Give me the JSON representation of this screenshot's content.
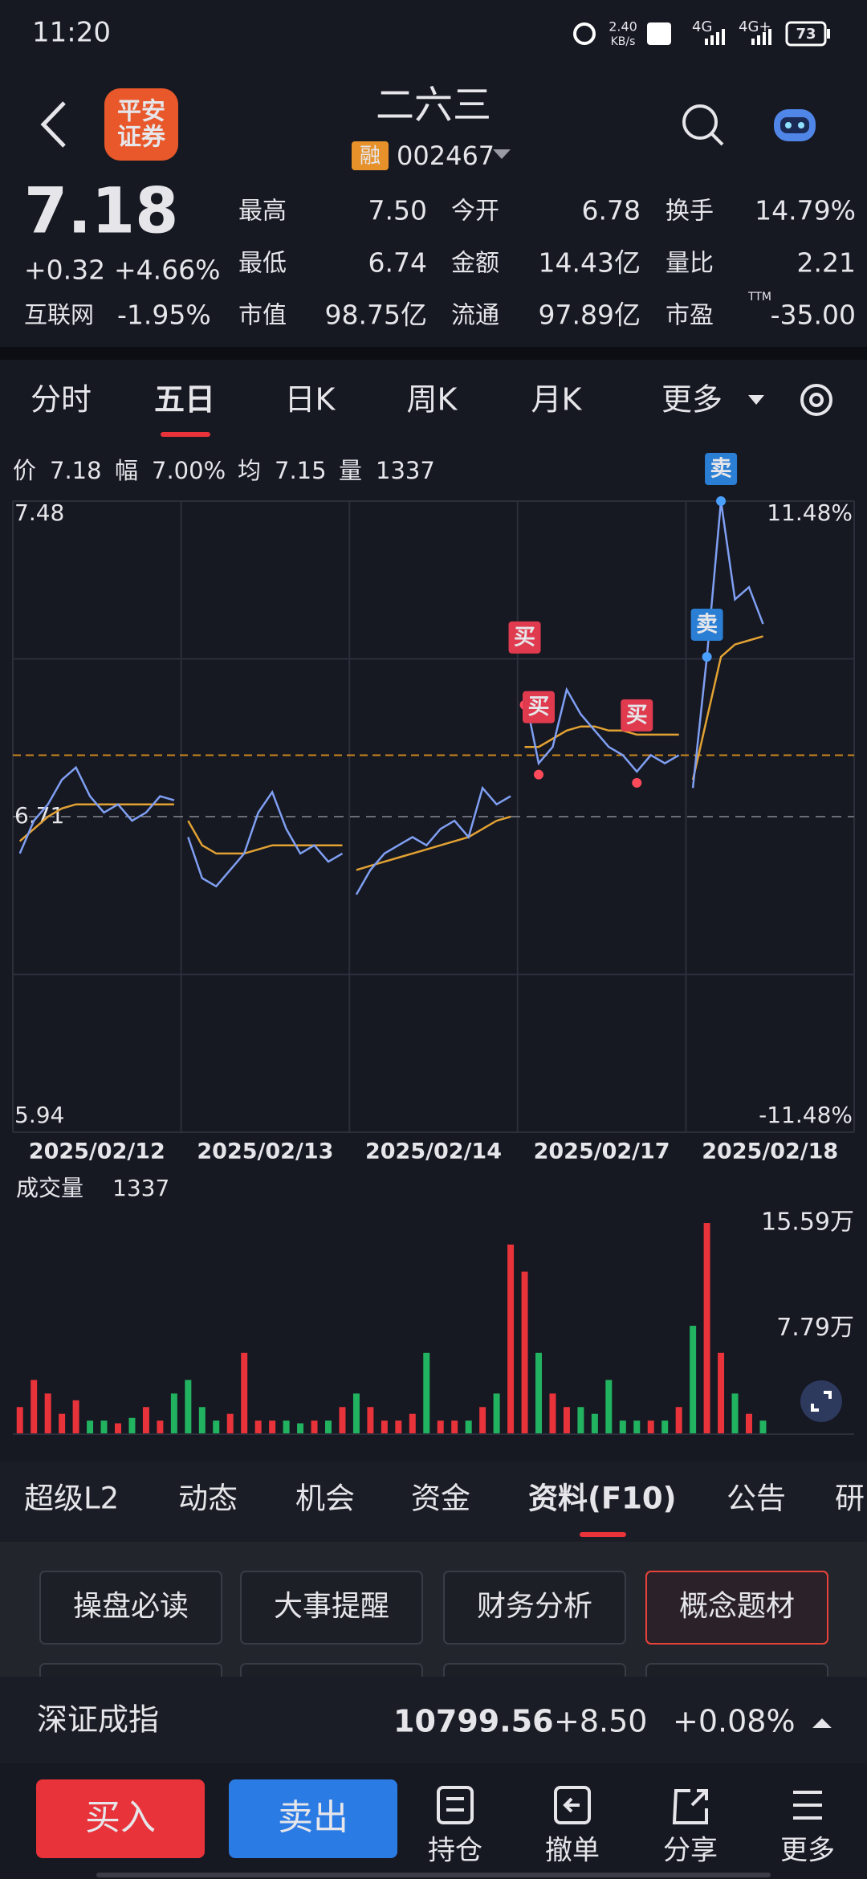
{
  "status": {
    "time": "11:20",
    "speed": "2.40",
    "speed_unit": "KB/s",
    "net1": "4G",
    "net2": "4G+",
    "battery": "73"
  },
  "header": {
    "logo_top": "平安",
    "logo_bottom": "证券",
    "title": "二六三",
    "badge": "融",
    "code": "002467"
  },
  "quote": {
    "price": "7.18",
    "change": "+0.32",
    "change_pct": "+4.66%",
    "sector": "互联网",
    "sector_pct": "-1.95%",
    "fields": [
      {
        "label": "最高",
        "value": "7.50",
        "color": "#f0393f"
      },
      {
        "label": "最低",
        "value": "6.74",
        "color": "#22b55f"
      },
      {
        "label": "市值",
        "value": "98.75亿",
        "color": "#ececf0"
      },
      {
        "label": "今开",
        "value": "6.78",
        "color": "#22b55f"
      },
      {
        "label": "金额",
        "value": "14.43亿",
        "color": "#ececf0"
      },
      {
        "label": "流通",
        "value": "97.89亿",
        "color": "#ececf0"
      },
      {
        "label": "换手",
        "value": "14.79%",
        "color": "#ececf0"
      },
      {
        "label": "量比",
        "value": "2.21",
        "color": "#ececf0"
      },
      {
        "label": "市盈",
        "value": "-35.00",
        "color": "#ececf0",
        "note": "TTM"
      }
    ]
  },
  "tabs": [
    "分时",
    "五日",
    "日K",
    "周K",
    "月K",
    "更多"
  ],
  "active_tab": 1,
  "info": [
    {
      "label": "价",
      "value": "7.18"
    },
    {
      "label": "幅",
      "value": "7.00%"
    },
    {
      "label": "均",
      "value": "7.15"
    },
    {
      "label": "量",
      "value": "1337"
    }
  ],
  "chart_data": {
    "type": "line",
    "ylim": [
      5.94,
      7.48
    ],
    "yticks": [
      7.48,
      6.71,
      5.94
    ],
    "y2lim": [
      -11.48,
      11.48
    ],
    "y2ticks": [
      {
        "value": 11.48,
        "label": "11.48%"
      },
      {
        "value": -11.48,
        "label": "-11.48%"
      }
    ],
    "reference_line": 6.86,
    "price_color": "#7f9ff2",
    "avg_color": "#e2a233",
    "up_color": "#e8333a",
    "down_color": "#21b35f",
    "days": [
      {
        "date": "2025/02/12",
        "price": [
          6.62,
          6.7,
          6.74,
          6.8,
          6.83,
          6.76,
          6.72,
          6.74,
          6.7,
          6.72,
          6.76,
          6.75
        ],
        "avg": [
          6.65,
          6.68,
          6.71,
          6.73,
          6.74,
          6.74,
          6.74,
          6.74,
          6.74,
          6.74,
          6.74,
          6.74
        ],
        "volume": [
          2,
          4,
          3,
          1.5,
          2.5,
          1,
          1,
          0.8,
          1.2,
          2,
          1,
          3
        ]
      },
      {
        "date": "2025/02/13",
        "price": [
          6.66,
          6.56,
          6.54,
          6.58,
          6.62,
          6.72,
          6.77,
          6.68,
          6.62,
          6.64,
          6.6,
          6.62
        ],
        "avg": [
          6.7,
          6.64,
          6.62,
          6.62,
          6.62,
          6.63,
          6.64,
          6.64,
          6.64,
          6.64,
          6.64,
          6.64
        ],
        "volume": [
          4,
          2,
          1,
          1.5,
          6,
          1,
          1,
          1,
          0.8,
          1,
          1,
          2
        ]
      },
      {
        "date": "2025/02/14",
        "price": [
          6.52,
          6.58,
          6.62,
          6.64,
          6.66,
          6.64,
          6.68,
          6.7,
          6.66,
          6.78,
          6.74,
          6.76
        ],
        "avg": [
          6.58,
          6.59,
          6.6,
          6.61,
          6.62,
          6.63,
          6.64,
          6.65,
          6.66,
          6.68,
          6.7,
          6.71
        ],
        "volume": [
          3,
          2,
          1,
          1,
          1.5,
          6,
          1,
          1,
          1,
          2,
          3,
          14
        ]
      },
      {
        "date": "2025/02/17",
        "price": [
          7.01,
          6.84,
          6.88,
          7.02,
          6.96,
          6.92,
          6.88,
          6.86,
          6.82,
          6.86,
          6.84,
          6.86
        ],
        "avg": [
          6.88,
          6.88,
          6.9,
          6.92,
          6.93,
          6.93,
          6.92,
          6.92,
          6.91,
          6.91,
          6.91,
          6.91
        ],
        "volume": [
          12,
          6,
          3,
          2,
          2,
          1.5,
          4,
          1,
          1,
          1,
          1,
          2
        ]
      },
      {
        "date": "2025/02/18",
        "price": [
          6.78,
          7.1,
          7.48,
          7.24,
          7.27,
          7.18,
          null,
          null,
          null,
          null,
          null,
          null
        ],
        "avg": [
          6.8,
          6.95,
          7.1,
          7.13,
          7.14,
          7.15,
          null,
          null,
          null,
          null,
          null,
          null
        ],
        "volume": [
          8,
          15.59,
          6,
          3,
          1.5,
          1,
          null,
          null,
          null,
          null,
          null,
          null
        ]
      }
    ],
    "signals": [
      {
        "label": "买"
      },
      {
        "label": "买"
      },
      {
        "label": "买"
      },
      {
        "label": "卖"
      },
      {
        "label": "卖"
      }
    ],
    "volume_title": "成交量",
    "volume_value": "1337",
    "volume_ylim": [
      0,
      16.6
    ],
    "volume_ticks": [
      {
        "value": 15.59,
        "label": "15.59万"
      },
      {
        "value": 7.79,
        "label": "7.79万"
      }
    ]
  },
  "bottom_tabs": [
    "超级L2",
    "动态",
    "机会",
    "资金",
    "资料(F10)",
    "公告",
    "研"
  ],
  "active_bottom": 4,
  "tools": [
    "操盘必读",
    "大事提醒",
    "财务分析",
    "概念题材"
  ],
  "index": {
    "name": "深证成指",
    "value": "10799.56",
    "change": "+8.50",
    "pct": "+0.08%"
  },
  "actions": {
    "buy": "买入",
    "sell": "卖出",
    "items": [
      "持仓",
      "撤单",
      "分享",
      "更多"
    ]
  }
}
